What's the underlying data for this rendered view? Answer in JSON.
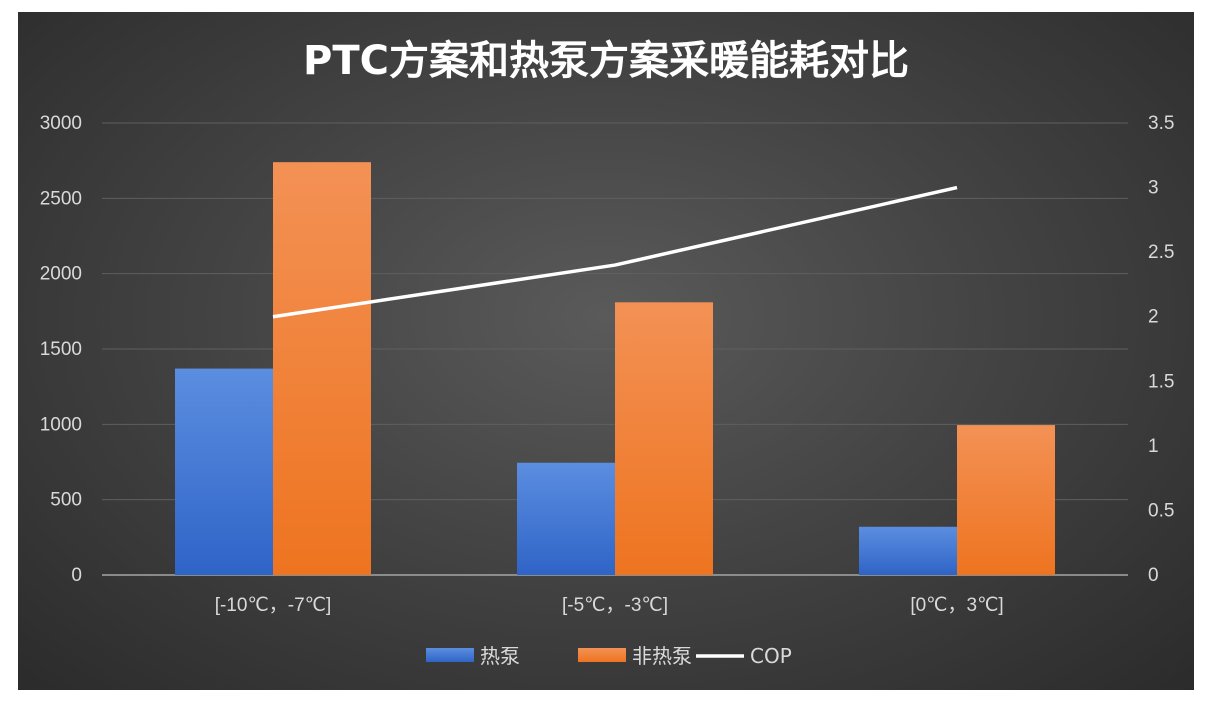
{
  "chart_data": {
    "type": "bar",
    "title": "PTC方案和热泵方案采暖能耗对比",
    "categories": [
      "[-10℃，-7℃]",
      "[-5℃，-3℃]",
      "[0℃，3℃]"
    ],
    "series": [
      {
        "name": "热泵",
        "type": "bar",
        "axis": "left",
        "color": "#4472c4",
        "values": [
          1370,
          745,
          320
        ]
      },
      {
        "name": "非热泵",
        "type": "bar",
        "axis": "left",
        "color": "#ed7d31",
        "values": [
          2740,
          1810,
          995
        ]
      },
      {
        "name": "COP",
        "type": "line",
        "axis": "right",
        "color": "#ffffff",
        "values": [
          2.0,
          2.4,
          3.0
        ]
      }
    ],
    "y_left": {
      "min": 0,
      "max": 3000,
      "ticks": [
        0,
        500,
        1000,
        1500,
        2000,
        2500,
        3000
      ]
    },
    "y_right": {
      "min": 0,
      "max": 3.5,
      "ticks": [
        "0",
        "0.5",
        "1",
        "1.5",
        "2",
        "2.5",
        "3",
        "3.5"
      ]
    },
    "grid": true,
    "legend": "bottom"
  }
}
